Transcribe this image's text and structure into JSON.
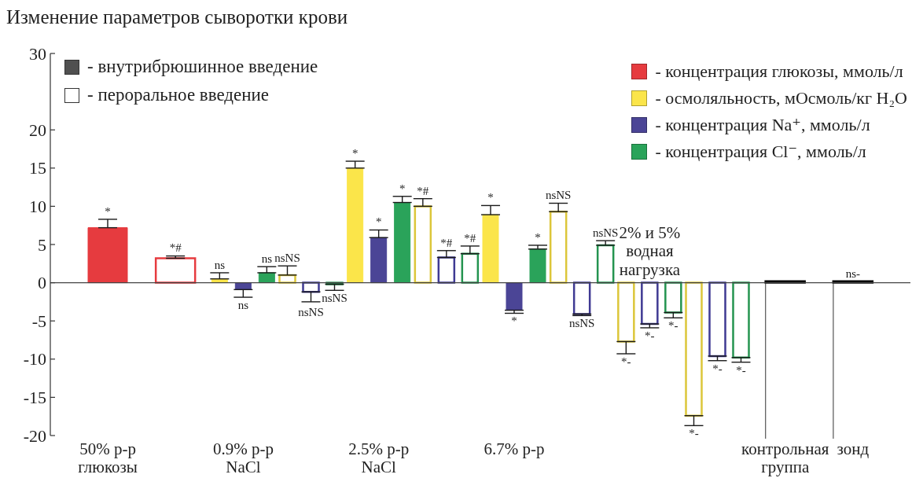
{
  "chart_data": {
    "type": "bar",
    "title": "Изменение параметров сыворотки крови",
    "categories": [
      "50% р-р глюкозы",
      null,
      "0.9% р-р NaCl",
      null,
      "2.5% р-р NaCl",
      null,
      "6.7% р-р",
      null,
      "2% и 5% водная нагрузка",
      null,
      "контрольная группа",
      "зонд"
    ],
    "series": [
      {
        "name": "- концентрация глюкозы, ммоль/л",
        "color": "#e63b3f",
        "values": [
          7.2,
          null,
          null,
          null,
          null,
          null,
          null,
          null,
          null,
          null,
          null,
          null
        ],
        "errors": [
          1.1,
          null,
          null,
          null,
          null,
          null,
          null,
          null,
          null,
          null,
          null,
          null
        ],
        "value_labels": [
          "*",
          null,
          null,
          null,
          null,
          null,
          null,
          null,
          null,
          null,
          null,
          null
        ]
      },
      {
        "name": "- осмоляльность, мОсмоль/кг H₂O",
        "color": "#fbe54a",
        "values": [
          null,
          null,
          0.5,
          null,
          15.0,
          null,
          8.9,
          null,
          null,
          null,
          null,
          null
        ],
        "errors": [
          null,
          null,
          0.8,
          null,
          0.9,
          null,
          1.2,
          null,
          null,
          null,
          null,
          null
        ],
        "value_labels": [
          null,
          null,
          "ns",
          null,
          "*",
          null,
          "*",
          null,
          null,
          null,
          null,
          null
        ]
      },
      {
        "name": "- концентрация Na⁺, ммоль/л",
        "color": "#4b4596",
        "values": [
          null,
          null,
          -0.9,
          null,
          5.9,
          null,
          -3.6,
          null,
          null,
          null,
          null,
          null
        ],
        "errors": [
          null,
          null,
          1.0,
          null,
          1.0,
          null,
          0.4,
          null,
          null,
          null,
          null,
          null
        ],
        "value_labels": [
          null,
          null,
          "ns",
          null,
          "*",
          null,
          "*",
          null,
          null,
          null,
          null,
          null
        ]
      },
      {
        "name": "- концентрация Cl⁻, ммоль/л",
        "color": "#2aa35a",
        "values": [
          null,
          null,
          1.3,
          null,
          10.5,
          null,
          4.4,
          null,
          null,
          null,
          null,
          null
        ],
        "errors": [
          null,
          null,
          0.8,
          null,
          0.8,
          null,
          0.5,
          null,
          null,
          null,
          null,
          null
        ],
        "value_labels": [
          null,
          null,
          "ns",
          null,
          "*",
          null,
          "*",
          null,
          null,
          null,
          null,
          null
        ]
      },
      {
        "color": "#e63b3f",
        "values": [
          null,
          3.2,
          null,
          null,
          null,
          null,
          null,
          null,
          null,
          null,
          null,
          null
        ],
        "errors": [
          null,
          0.3,
          null,
          null,
          null,
          null,
          null,
          null,
          null,
          null,
          null,
          null
        ],
        "value_labels": [
          null,
          "*#",
          null,
          null,
          null,
          null,
          null,
          null,
          null,
          null,
          null,
          null
        ]
      },
      {
        "color": "#dcc63a",
        "values": [
          null,
          null,
          null,
          1.0,
          null,
          10.0,
          null,
          9.3,
          -7.7,
          -17.4,
          null,
          null
        ],
        "errors": [
          null,
          null,
          null,
          1.2,
          null,
          1.0,
          null,
          1.1,
          1.6,
          1.3,
          null,
          null
        ],
        "value_labels": [
          null,
          null,
          null,
          "nsNS",
          null,
          "*#",
          null,
          "nsNS",
          "*-",
          "*-",
          null,
          null
        ]
      },
      {
        "color": "#3f3a93",
        "values": [
          null,
          null,
          null,
          -1.2,
          null,
          3.3,
          null,
          -4.1,
          -5.4,
          -9.6,
          null,
          null
        ],
        "errors": [
          null,
          null,
          null,
          1.3,
          null,
          0.9,
          null,
          0.2,
          0.5,
          0.6,
          null,
          null
        ],
        "value_labels": [
          null,
          null,
          null,
          "nsNS",
          null,
          "*#",
          null,
          "nsNS",
          "*-",
          "*-",
          null,
          null
        ]
      },
      {
        "color": "#249450",
        "values": [
          null,
          null,
          null,
          -0.2,
          null,
          3.8,
          null,
          4.9,
          -3.9,
          -9.8,
          null,
          null
        ],
        "errors": [
          null,
          null,
          null,
          0.8,
          null,
          1.0,
          null,
          0.6,
          0.7,
          0.6,
          null,
          null
        ],
        "value_labels": [
          null,
          null,
          null,
          "nsNS",
          null,
          "*#",
          null,
          "nsNS",
          "*-",
          "*-",
          null,
          null
        ]
      },
      {
        "color": "#000000",
        "values": [
          null,
          null,
          null,
          null,
          null,
          null,
          null,
          null,
          null,
          null,
          0.2,
          0.2
        ],
        "value_labels": [
          null,
          null,
          null,
          null,
          null,
          null,
          null,
          null,
          null,
          null,
          null,
          "ns-"
        ]
      }
    ],
    "ylim": [
      -20,
      30
    ],
    "yticks": [
      -20,
      -15,
      -10,
      -5,
      0,
      5,
      10,
      15,
      20,
      30
    ],
    "legend": "top right",
    "annotations": [
      "- внутрибрюшинное введение",
      "- пероральное введение"
    ]
  }
}
